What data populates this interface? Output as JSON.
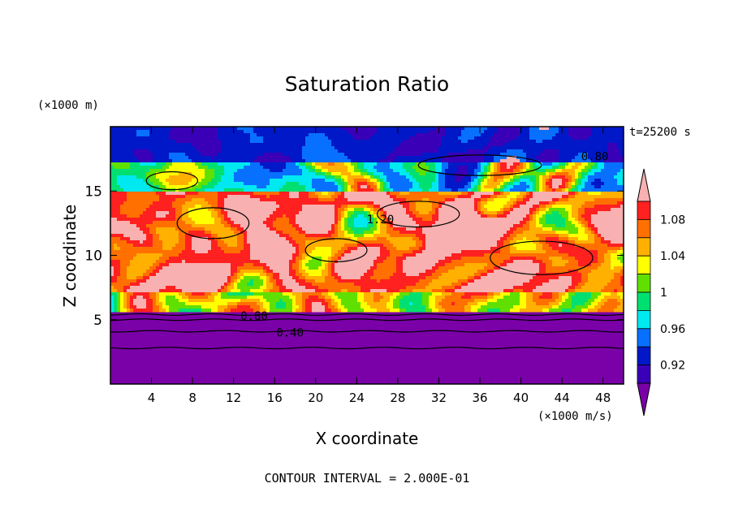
{
  "chart_data": {
    "type": "heatmap",
    "title": "Saturation Ratio",
    "xlabel": "X coordinate",
    "ylabel": "Z coordinate",
    "x_units": "(×1000 m/s)",
    "y_units": "(×1000 m)",
    "time_label": "t=25200 s",
    "footer": "CONTOUR INTERVAL = 2.000E-01",
    "xlim": [
      0,
      50
    ],
    "ylim": [
      0,
      20
    ],
    "x_ticks": [
      4,
      8,
      12,
      16,
      20,
      24,
      28,
      32,
      36,
      40,
      44,
      48
    ],
    "y_ticks": [
      5,
      10,
      15
    ],
    "colorbar": {
      "levels": [
        0.92,
        0.96,
        1,
        1.04,
        1.08
      ],
      "colors": [
        "#7a00a8",
        "#3a00b8",
        "#0018c8",
        "#0870ff",
        "#00e8f0",
        "#00e070",
        "#60e000",
        "#ffff00",
        "#ffb000",
        "#ff7000",
        "#ff2020",
        "#f8b0b0"
      ],
      "extend": "both"
    },
    "contour_labels": [
      {
        "text": "0.80",
        "x": 47.2,
        "y": 17.7
      },
      {
        "text": "1.20",
        "x": 26.3,
        "y": 12.8
      },
      {
        "text": "0.80",
        "x": 14.0,
        "y": 5.3
      },
      {
        "text": "0.40",
        "x": 17.5,
        "y": 4.0
      }
    ]
  }
}
